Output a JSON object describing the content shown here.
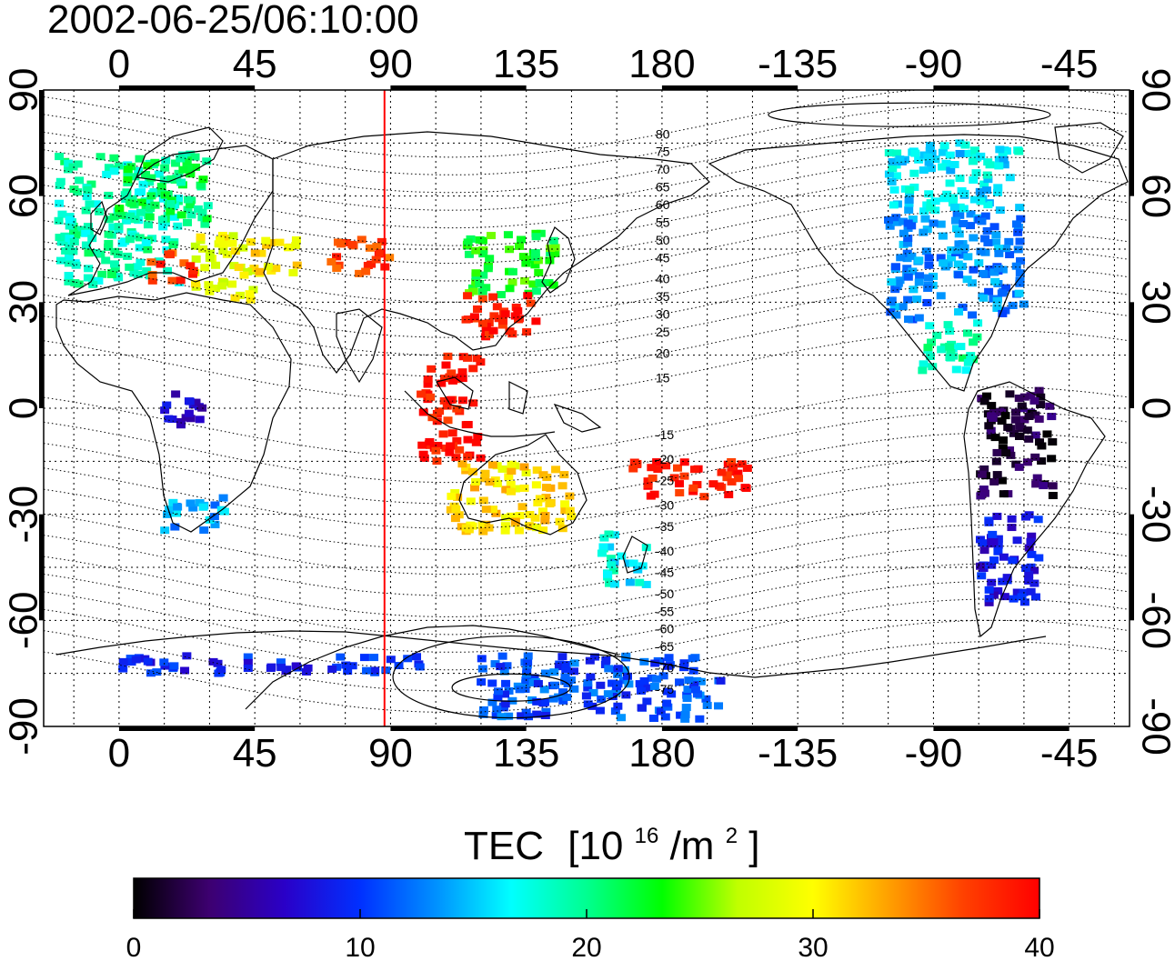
{
  "title": "2002-06-25/06:10:00",
  "colors": {
    "frame": "#000000",
    "grid": "#000000",
    "terminator": "#ff0000",
    "coast": "#000000"
  },
  "map": {
    "projection": "cylindrical",
    "lon_range": [
      -25,
      335
    ],
    "lat_range": [
      -90,
      90
    ],
    "x_ticks": [
      {
        "lon": 0,
        "label": "0"
      },
      {
        "lon": 45,
        "label": "45"
      },
      {
        "lon": 90,
        "label": "90"
      },
      {
        "lon": 135,
        "label": "135"
      },
      {
        "lon": 180,
        "label": "180"
      },
      {
        "lon": 225,
        "label": "-135"
      },
      {
        "lon": 270,
        "label": "-90"
      },
      {
        "lon": 315,
        "label": "-45"
      }
    ],
    "y_ticks": [
      {
        "lat": 90,
        "label": "90"
      },
      {
        "lat": 60,
        "label": "60"
      },
      {
        "lat": 30,
        "label": "30"
      },
      {
        "lat": 0,
        "label": "0"
      },
      {
        "lat": -30,
        "label": "-30"
      },
      {
        "lat": -60,
        "label": "-60"
      },
      {
        "lat": -90,
        "label": "-90"
      }
    ],
    "terminator_lon": 88,
    "magnetic_lat_labels": [
      {
        "lat": 81,
        "label": "80"
      },
      {
        "lat": 76,
        "label": "75"
      },
      {
        "lat": 71,
        "label": "70"
      },
      {
        "lat": 66,
        "label": "65"
      },
      {
        "lat": 61,
        "label": "60"
      },
      {
        "lat": 56,
        "label": "55"
      },
      {
        "lat": 51,
        "label": "50"
      },
      {
        "lat": 46,
        "label": "45"
      },
      {
        "lat": 40,
        "label": "40"
      },
      {
        "lat": 35,
        "label": "35"
      },
      {
        "lat": 30,
        "label": "30"
      },
      {
        "lat": 25,
        "label": "25"
      },
      {
        "lat": 19,
        "label": "20"
      },
      {
        "lat": 12,
        "label": "15"
      },
      {
        "lat": -4,
        "label": "-15"
      },
      {
        "lat": -11,
        "label": "-20"
      },
      {
        "lat": -17,
        "label": "-25"
      },
      {
        "lat": -24,
        "label": "-30"
      },
      {
        "lat": -30,
        "label": "-35"
      },
      {
        "lat": -37,
        "label": "-40"
      },
      {
        "lat": -43,
        "label": "-45"
      },
      {
        "lat": -49,
        "label": "-50"
      },
      {
        "lat": -54,
        "label": "-55"
      },
      {
        "lat": -59,
        "label": "-60"
      },
      {
        "lat": -64,
        "label": "-65"
      },
      {
        "lat": -70,
        "label": "-70"
      },
      {
        "lat": -76,
        "label": "-75"
      }
    ]
  },
  "colorbar": {
    "label_main": "TEC",
    "label_unit_open": "[10",
    "label_unit_exp": "16",
    "label_unit_mid": "/m",
    "label_unit_exp2": "2",
    "label_unit_close": "]",
    "min": 0,
    "max": 40,
    "ticks": [
      "0",
      "10",
      "20",
      "30",
      "40"
    ],
    "stops": [
      "#000000",
      "#3d0070",
      "#2a00c8",
      "#0030ff",
      "#0090ff",
      "#00ffff",
      "#00ff90",
      "#00ff00",
      "#c0ff00",
      "#ffff00",
      "#ffa000",
      "#ff4000",
      "#ff0000"
    ]
  },
  "chart_data": {
    "type": "heatmap",
    "title": "2002-06-25/06:10:00",
    "value_name": "TEC [10^16/m^2]",
    "value_range": [
      0,
      40
    ],
    "regions": [
      {
        "lon": [
          -20,
          20
        ],
        "lat": [
          35,
          72
        ],
        "tec": 19
      },
      {
        "lon": [
          0,
          30
        ],
        "lat": [
          52,
          72
        ],
        "tec": 21
      },
      {
        "lon": [
          25,
          45
        ],
        "lat": [
          30,
          50
        ],
        "tec": 29
      },
      {
        "lon": [
          10,
          25
        ],
        "lat": [
          36,
          44
        ],
        "tec": 37
      },
      {
        "lon": [
          45,
          60
        ],
        "lat": [
          38,
          48
        ],
        "tec": 31
      },
      {
        "lon": [
          70,
          90
        ],
        "lat": [
          38,
          48
        ],
        "tec": 37
      },
      {
        "lon": [
          115,
          145
        ],
        "lat": [
          32,
          50
        ],
        "tec": 23
      },
      {
        "lon": [
          115,
          140
        ],
        "lat": [
          20,
          32
        ],
        "tec": 39
      },
      {
        "lon": [
          100,
          120
        ],
        "lat": [
          -15,
          15
        ],
        "tec": 39
      },
      {
        "lon": [
          110,
          150
        ],
        "lat": [
          -35,
          -15
        ],
        "tec": 31
      },
      {
        "lon": [
          160,
          175
        ],
        "lat": [
          -50,
          -35
        ],
        "tec": 17
      },
      {
        "lon": [
          170,
          210
        ],
        "lat": [
          -25,
          -15
        ],
        "tec": 39
      },
      {
        "lon": [
          255,
          300
        ],
        "lat": [
          25,
          55
        ],
        "tec": 13
      },
      {
        "lon": [
          255,
          300
        ],
        "lat": [
          55,
          75
        ],
        "tec": 16
      },
      {
        "lon": [
          265,
          285
        ],
        "lat": [
          10,
          25
        ],
        "tec": 19
      },
      {
        "lon": [
          285,
          310
        ],
        "lat": [
          -25,
          5
        ],
        "tec": 2
      },
      {
        "lon": [
          285,
          305
        ],
        "lat": [
          -55,
          -30
        ],
        "tec": 8
      },
      {
        "lon": [
          15,
          35
        ],
        "lat": [
          -35,
          -25
        ],
        "tec": 14
      },
      {
        "lon": [
          15,
          30
        ],
        "lat": [
          -5,
          5
        ],
        "tec": 7
      },
      {
        "lon": [
          0,
          100
        ],
        "lat": [
          -75,
          -70
        ],
        "tec": 9
      },
      {
        "lon": [
          120,
          200
        ],
        "lat": [
          -88,
          -70
        ],
        "tec": 11
      }
    ]
  }
}
